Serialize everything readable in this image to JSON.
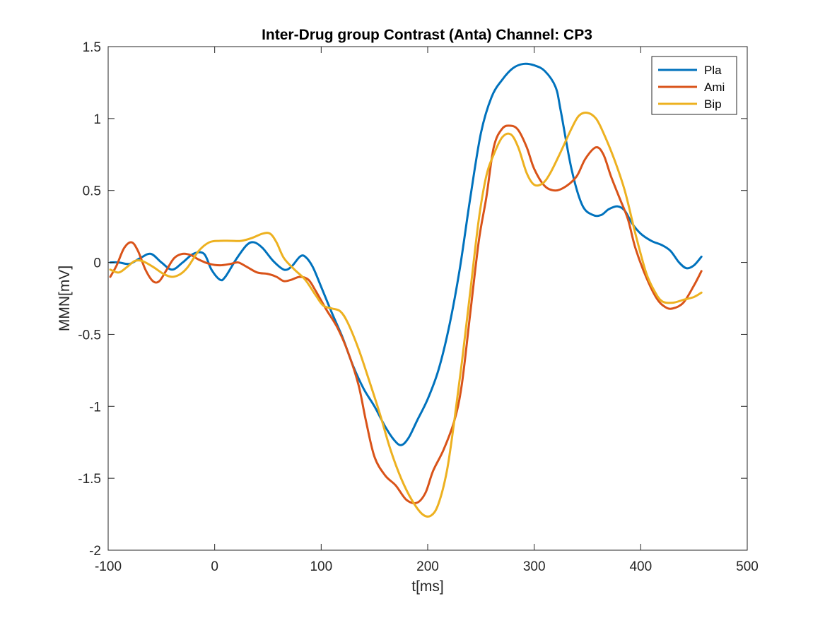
{
  "chart_data": {
    "type": "line",
    "title": "Inter-Drug group Contrast (Anta) Channel: CP3",
    "xlabel": "t[ms]",
    "ylabel": "MMN[mV]",
    "xlim": [
      -100,
      500
    ],
    "ylim": [
      -2,
      1.5
    ],
    "xticks": [
      -100,
      0,
      100,
      200,
      300,
      400,
      500
    ],
    "xtick_labels": [
      "-100",
      "0",
      "100",
      "200",
      "300",
      "400",
      "500"
    ],
    "yticks": [
      -2,
      -1.5,
      -1,
      -0.5,
      0,
      0.5,
      1,
      1.5
    ],
    "ytick_labels": [
      "-2",
      "-1.5",
      "-1",
      "-0.5",
      "0",
      "0.5",
      "1",
      "1.5"
    ],
    "grid": false,
    "legend_position": "top-right",
    "series": [
      {
        "name": "Pla",
        "color": "#0072BD",
        "points": [
          [
            -98,
            0.0
          ],
          [
            -90,
            0.0
          ],
          [
            -80,
            -0.01
          ],
          [
            -70,
            0.03
          ],
          [
            -60,
            0.06
          ],
          [
            -50,
            0.0
          ],
          [
            -40,
            -0.05
          ],
          [
            -30,
            0.0
          ],
          [
            -20,
            0.06
          ],
          [
            -10,
            0.06
          ],
          [
            -3,
            -0.05
          ],
          [
            5,
            -0.12
          ],
          [
            10,
            -0.1
          ],
          [
            20,
            0.02
          ],
          [
            30,
            0.12
          ],
          [
            37,
            0.14
          ],
          [
            45,
            0.1
          ],
          [
            55,
            0.01
          ],
          [
            65,
            -0.05
          ],
          [
            72,
            -0.03
          ],
          [
            80,
            0.04
          ],
          [
            85,
            0.04
          ],
          [
            92,
            -0.03
          ],
          [
            100,
            -0.17
          ],
          [
            110,
            -0.35
          ],
          [
            120,
            -0.52
          ],
          [
            130,
            -0.72
          ],
          [
            140,
            -0.88
          ],
          [
            150,
            -1.0
          ],
          [
            160,
            -1.14
          ],
          [
            168,
            -1.23
          ],
          [
            175,
            -1.27
          ],
          [
            182,
            -1.22
          ],
          [
            190,
            -1.1
          ],
          [
            200,
            -0.95
          ],
          [
            210,
            -0.75
          ],
          [
            220,
            -0.45
          ],
          [
            230,
            -0.05
          ],
          [
            240,
            0.45
          ],
          [
            250,
            0.9
          ],
          [
            260,
            1.15
          ],
          [
            270,
            1.27
          ],
          [
            280,
            1.35
          ],
          [
            290,
            1.38
          ],
          [
            300,
            1.37
          ],
          [
            310,
            1.33
          ],
          [
            320,
            1.22
          ],
          [
            325,
            1.05
          ],
          [
            335,
            0.65
          ],
          [
            345,
            0.4
          ],
          [
            355,
            0.33
          ],
          [
            363,
            0.33
          ],
          [
            370,
            0.37
          ],
          [
            378,
            0.39
          ],
          [
            385,
            0.36
          ],
          [
            392,
            0.27
          ],
          [
            400,
            0.2
          ],
          [
            410,
            0.15
          ],
          [
            420,
            0.12
          ],
          [
            428,
            0.08
          ],
          [
            436,
            0.0
          ],
          [
            443,
            -0.04
          ],
          [
            450,
            -0.02
          ],
          [
            457,
            0.04
          ]
        ]
      },
      {
        "name": "Ami",
        "color": "#D95319",
        "points": [
          [
            -98,
            -0.1
          ],
          [
            -92,
            -0.02
          ],
          [
            -85,
            0.1
          ],
          [
            -78,
            0.14
          ],
          [
            -72,
            0.08
          ],
          [
            -65,
            -0.05
          ],
          [
            -58,
            -0.13
          ],
          [
            -52,
            -0.13
          ],
          [
            -45,
            -0.05
          ],
          [
            -38,
            0.03
          ],
          [
            -30,
            0.06
          ],
          [
            -22,
            0.05
          ],
          [
            -15,
            0.02
          ],
          [
            -5,
            -0.01
          ],
          [
            5,
            -0.02
          ],
          [
            15,
            -0.01
          ],
          [
            22,
            0.0
          ],
          [
            30,
            -0.03
          ],
          [
            40,
            -0.07
          ],
          [
            50,
            -0.08
          ],
          [
            58,
            -0.1
          ],
          [
            65,
            -0.13
          ],
          [
            72,
            -0.12
          ],
          [
            80,
            -0.1
          ],
          [
            88,
            -0.12
          ],
          [
            95,
            -0.2
          ],
          [
            105,
            -0.33
          ],
          [
            115,
            -0.45
          ],
          [
            125,
            -0.62
          ],
          [
            135,
            -0.85
          ],
          [
            142,
            -1.1
          ],
          [
            150,
            -1.35
          ],
          [
            160,
            -1.48
          ],
          [
            170,
            -1.55
          ],
          [
            180,
            -1.65
          ],
          [
            190,
            -1.67
          ],
          [
            198,
            -1.6
          ],
          [
            205,
            -1.45
          ],
          [
            215,
            -1.3
          ],
          [
            225,
            -1.1
          ],
          [
            232,
            -0.85
          ],
          [
            240,
            -0.35
          ],
          [
            248,
            0.15
          ],
          [
            255,
            0.45
          ],
          [
            262,
            0.8
          ],
          [
            270,
            0.93
          ],
          [
            278,
            0.95
          ],
          [
            285,
            0.92
          ],
          [
            293,
            0.8
          ],
          [
            300,
            0.65
          ],
          [
            310,
            0.53
          ],
          [
            320,
            0.5
          ],
          [
            330,
            0.53
          ],
          [
            340,
            0.6
          ],
          [
            348,
            0.72
          ],
          [
            358,
            0.8
          ],
          [
            365,
            0.75
          ],
          [
            372,
            0.6
          ],
          [
            380,
            0.45
          ],
          [
            388,
            0.3
          ],
          [
            395,
            0.1
          ],
          [
            405,
            -0.1
          ],
          [
            415,
            -0.25
          ],
          [
            423,
            -0.31
          ],
          [
            430,
            -0.32
          ],
          [
            440,
            -0.28
          ],
          [
            450,
            -0.16
          ],
          [
            457,
            -0.06
          ]
        ]
      },
      {
        "name": "Bip",
        "color": "#EDB120",
        "points": [
          [
            -98,
            -0.05
          ],
          [
            -90,
            -0.07
          ],
          [
            -82,
            -0.03
          ],
          [
            -75,
            0.01
          ],
          [
            -68,
            0.01
          ],
          [
            -58,
            -0.03
          ],
          [
            -48,
            -0.08
          ],
          [
            -40,
            -0.1
          ],
          [
            -32,
            -0.08
          ],
          [
            -25,
            -0.03
          ],
          [
            -15,
            0.08
          ],
          [
            -5,
            0.14
          ],
          [
            5,
            0.15
          ],
          [
            15,
            0.15
          ],
          [
            25,
            0.15
          ],
          [
            35,
            0.17
          ],
          [
            45,
            0.2
          ],
          [
            52,
            0.2
          ],
          [
            58,
            0.14
          ],
          [
            65,
            0.03
          ],
          [
            75,
            -0.05
          ],
          [
            85,
            -0.12
          ],
          [
            95,
            -0.23
          ],
          [
            102,
            -0.3
          ],
          [
            110,
            -0.32
          ],
          [
            118,
            -0.34
          ],
          [
            125,
            -0.42
          ],
          [
            135,
            -0.6
          ],
          [
            145,
            -0.82
          ],
          [
            155,
            -1.05
          ],
          [
            165,
            -1.3
          ],
          [
            175,
            -1.5
          ],
          [
            185,
            -1.65
          ],
          [
            195,
            -1.75
          ],
          [
            203,
            -1.76
          ],
          [
            210,
            -1.68
          ],
          [
            218,
            -1.45
          ],
          [
            225,
            -1.1
          ],
          [
            232,
            -0.7
          ],
          [
            240,
            -0.2
          ],
          [
            248,
            0.3
          ],
          [
            255,
            0.6
          ],
          [
            262,
            0.75
          ],
          [
            270,
            0.87
          ],
          [
            278,
            0.89
          ],
          [
            285,
            0.8
          ],
          [
            293,
            0.62
          ],
          [
            300,
            0.54
          ],
          [
            308,
            0.55
          ],
          [
            315,
            0.62
          ],
          [
            325,
            0.77
          ],
          [
            335,
            0.93
          ],
          [
            342,
            1.02
          ],
          [
            350,
            1.04
          ],
          [
            358,
            1.0
          ],
          [
            365,
            0.9
          ],
          [
            375,
            0.72
          ],
          [
            385,
            0.5
          ],
          [
            395,
            0.2
          ],
          [
            405,
            -0.07
          ],
          [
            413,
            -0.2
          ],
          [
            420,
            -0.27
          ],
          [
            430,
            -0.28
          ],
          [
            440,
            -0.26
          ],
          [
            450,
            -0.24
          ],
          [
            457,
            -0.21
          ]
        ]
      }
    ]
  }
}
